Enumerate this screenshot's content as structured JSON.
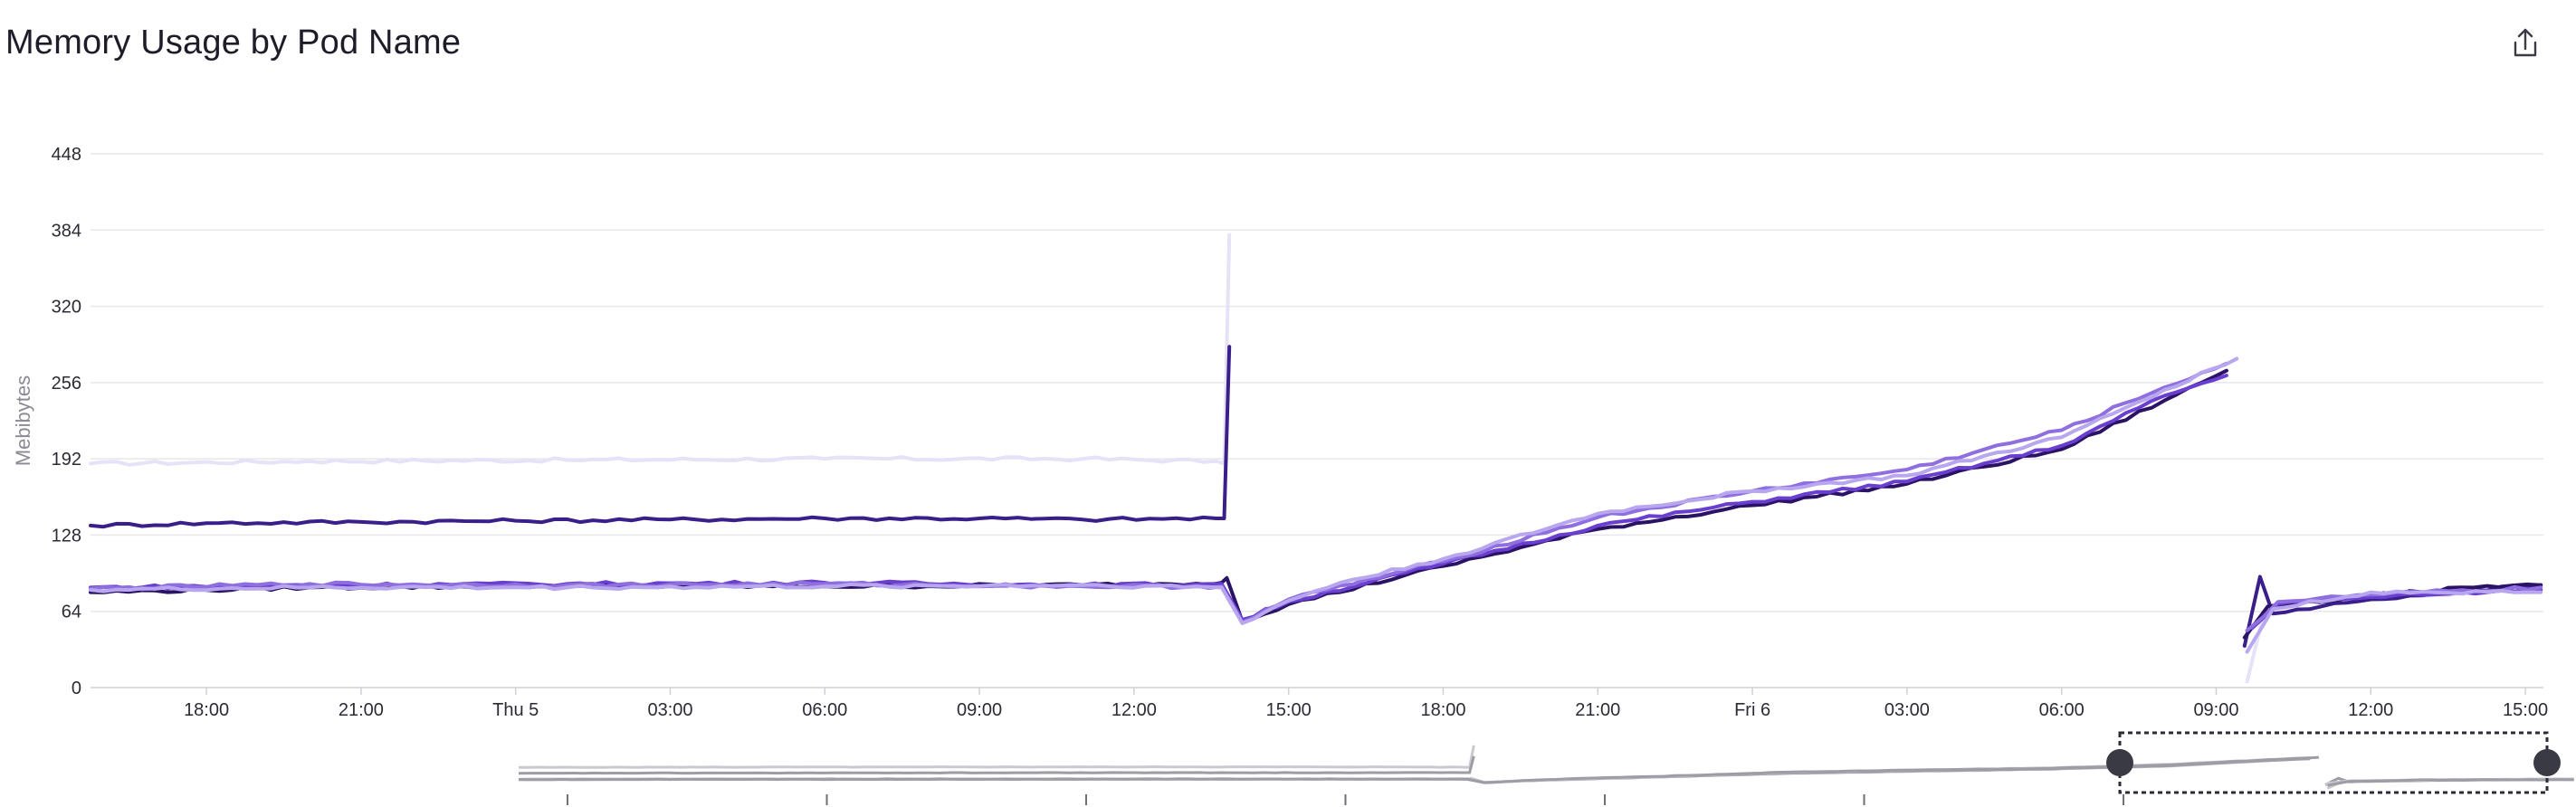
{
  "header": {
    "title": "Memory Usage by Pod Name",
    "export_icon": "share-export-icon"
  },
  "chart_data": {
    "type": "line",
    "title": "Memory Usage by Pod Name",
    "ylabel": "Mebibytes",
    "xlabel": "",
    "ylim": [
      0,
      448
    ],
    "yticks": [
      0,
      64,
      128,
      192,
      256,
      320,
      384,
      448
    ],
    "x_unit": "hours",
    "xlim": [
      15.75,
      63.35
    ],
    "xticks": [
      {
        "x": 18,
        "label": "18:00"
      },
      {
        "x": 21,
        "label": "21:00"
      },
      {
        "x": 24,
        "label": "Thu 5"
      },
      {
        "x": 27,
        "label": "03:00"
      },
      {
        "x": 30,
        "label": "06:00"
      },
      {
        "x": 33,
        "label": "09:00"
      },
      {
        "x": 36,
        "label": "12:00"
      },
      {
        "x": 39,
        "label": "15:00"
      },
      {
        "x": 42,
        "label": "18:00"
      },
      {
        "x": 45,
        "label": "21:00"
      },
      {
        "x": 48,
        "label": "Fri 6"
      },
      {
        "x": 51,
        "label": "03:00"
      },
      {
        "x": 54,
        "label": "06:00"
      },
      {
        "x": 57,
        "label": "09:00"
      },
      {
        "x": 60,
        "label": "12:00"
      },
      {
        "x": 63,
        "label": "15:00"
      }
    ],
    "grid": true,
    "legend": "none",
    "series": [
      {
        "color": "#e6e2f7",
        "segments": [
          [
            [
              15.75,
              188
            ],
            [
              20,
              190
            ],
            [
              25,
              191
            ],
            [
              30,
              192
            ],
            [
              35,
              192
            ],
            [
              37.6,
              190
            ],
            [
              37.75,
              188
            ],
            [
              37.85,
              380
            ]
          ],
          [
            [
              57.6,
              5
            ],
            [
              57.9,
              58
            ],
            [
              58.3,
              70
            ],
            [
              60,
              76
            ],
            [
              62,
              80
            ],
            [
              63.3,
              84
            ]
          ]
        ]
      },
      {
        "color": "#3a1e8a",
        "segments": [
          [
            [
              15.75,
              136
            ],
            [
              18,
              138
            ],
            [
              21,
              139
            ],
            [
              24,
              140
            ],
            [
              27,
              141
            ],
            [
              30,
              142
            ],
            [
              33,
              142
            ],
            [
              35,
              141
            ],
            [
              37.6,
              142
            ],
            [
              37.75,
              142
            ],
            [
              37.85,
              286
            ]
          ],
          [
            [
              57.55,
              35
            ],
            [
              57.85,
              93
            ],
            [
              58.1,
              62
            ],
            [
              60,
              74
            ],
            [
              62,
              82
            ],
            [
              63.3,
              86
            ]
          ]
        ]
      },
      {
        "color": "#2a1265",
        "segments": [
          [
            [
              15.75,
              80
            ],
            [
              20,
              84
            ],
            [
              25,
              85
            ],
            [
              30,
              85
            ],
            [
              35,
              86
            ],
            [
              37.7,
              88
            ],
            [
              37.8,
              92
            ],
            [
              38.1,
              56
            ],
            [
              39,
              70
            ],
            [
              42,
              102
            ],
            [
              45,
              133
            ],
            [
              48,
              153
            ],
            [
              51,
              171
            ],
            [
              54,
              200
            ],
            [
              56,
              241
            ],
            [
              57.2,
              266
            ]
          ],
          [
            [
              57.55,
              42
            ],
            [
              58,
              68
            ],
            [
              60,
              77
            ],
            [
              62,
              84
            ],
            [
              63.3,
              86
            ]
          ]
        ]
      },
      {
        "color": "#6a3fd0",
        "segments": [
          [
            [
              15.75,
              84
            ],
            [
              20,
              86
            ],
            [
              25,
              87
            ],
            [
              30,
              88
            ],
            [
              35,
              86
            ],
            [
              37.7,
              87
            ],
            [
              38.1,
              57
            ],
            [
              39,
              72
            ],
            [
              42,
              104
            ],
            [
              45,
              136
            ],
            [
              48,
              156
            ],
            [
              51,
              173
            ],
            [
              54,
              203
            ],
            [
              56,
              245
            ],
            [
              57.2,
              262
            ]
          ],
          [
            [
              57.7,
              50
            ],
            [
              58.2,
              70
            ],
            [
              60,
              76
            ],
            [
              63.3,
              82
            ]
          ]
        ]
      },
      {
        "color": "#8f6ee0",
        "segments": [
          [
            [
              15.75,
              83
            ],
            [
              20,
              87
            ],
            [
              25,
              86
            ],
            [
              30,
              87
            ],
            [
              35,
              85
            ],
            [
              37.7,
              85
            ],
            [
              38.1,
              55
            ],
            [
              39,
              74
            ],
            [
              42,
              106
            ],
            [
              45,
              143
            ],
            [
              48,
              165
            ],
            [
              51,
              183
            ],
            [
              54,
              216
            ],
            [
              56,
              252
            ],
            [
              57.2,
              272
            ]
          ],
          [
            [
              57.6,
              48
            ],
            [
              58.2,
              72
            ],
            [
              60,
              78
            ],
            [
              63.3,
              84
            ]
          ]
        ]
      },
      {
        "color": "#b8a6ef",
        "segments": [
          [
            [
              15.75,
              82
            ],
            [
              20,
              84
            ],
            [
              25,
              84
            ],
            [
              30,
              85
            ],
            [
              35,
              86
            ],
            [
              37.7,
              84
            ],
            [
              38.1,
              54
            ],
            [
              39,
              73
            ],
            [
              40,
              88
            ],
            [
              42,
              108
            ],
            [
              45,
              146
            ],
            [
              48,
              165
            ],
            [
              51,
              178
            ],
            [
              54,
              210
            ],
            [
              56,
              250
            ],
            [
              57.4,
              276
            ]
          ],
          [
            [
              57.6,
              30
            ],
            [
              58.1,
              66
            ],
            [
              60,
              80
            ],
            [
              63.3,
              80
            ]
          ]
        ]
      }
    ]
  }
}
